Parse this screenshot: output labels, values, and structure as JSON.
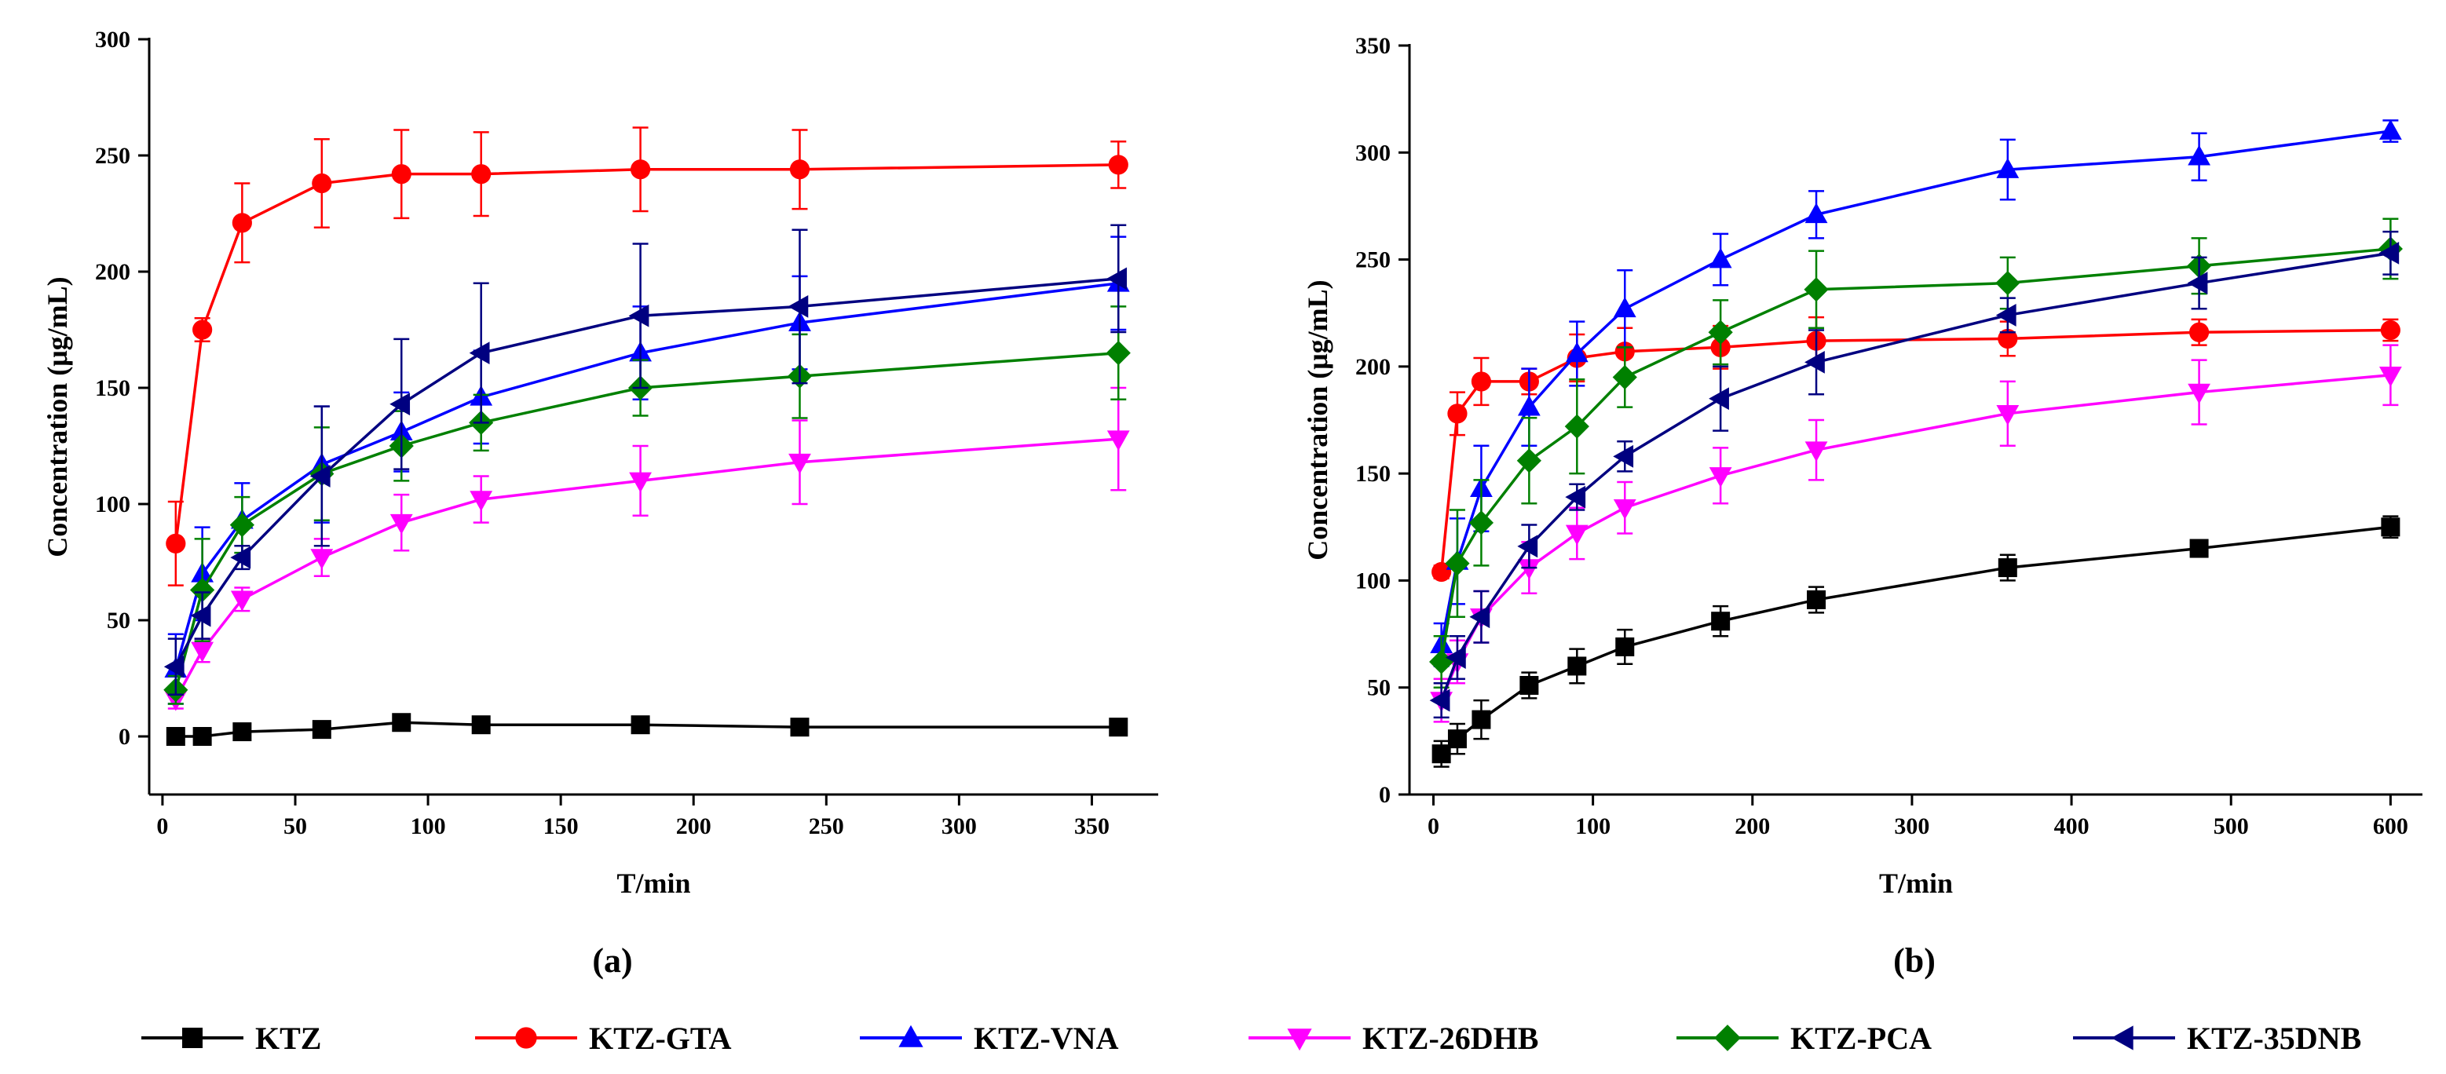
{
  "chart_data": [
    {
      "type": "line",
      "panel_label": "(a)",
      "xlabel": "T/min",
      "ylabel": "Concentration (μg/mL)",
      "xlim": [
        -5,
        375
      ],
      "ylim": [
        -25,
        300
      ],
      "x_ticks": [
        0,
        50,
        100,
        150,
        200,
        250,
        300,
        350
      ],
      "y_ticks": [
        0,
        50,
        100,
        150,
        200,
        250,
        300
      ],
      "x": [
        5,
        15,
        30,
        60,
        90,
        120,
        180,
        240,
        360
      ],
      "series": [
        {
          "name": "KTZ",
          "color": "#000000",
          "marker": "square",
          "values": [
            0,
            0,
            2,
            3,
            6,
            5,
            5,
            4,
            4
          ],
          "errors": [
            1,
            1,
            1,
            1,
            1,
            1,
            1,
            1,
            1
          ]
        },
        {
          "name": "KTZ-GTA",
          "color": "#ff0000",
          "marker": "circle",
          "values": [
            83,
            175,
            221,
            238,
            242,
            242,
            244,
            244,
            246
          ],
          "errors": [
            18,
            5,
            17,
            19,
            19,
            18,
            18,
            17,
            10
          ]
        },
        {
          "name": "KTZ-VNA",
          "color": "#0000ff",
          "marker": "triangle-up",
          "values": [
            29,
            70,
            93,
            117,
            131,
            146,
            165,
            178,
            195
          ],
          "errors": [
            15,
            20,
            16,
            25,
            17,
            20,
            20,
            20,
            20
          ]
        },
        {
          "name": "KTZ-26DHB",
          "color": "#ff00ff",
          "marker": "triangle-down",
          "values": [
            16,
            37,
            59,
            77,
            92,
            102,
            110,
            118,
            128
          ],
          "errors": [
            4,
            5,
            5,
            8,
            12,
            10,
            15,
            18,
            22
          ]
        },
        {
          "name": "KTZ-PCA",
          "color": "#008000",
          "marker": "diamond",
          "values": [
            20,
            63,
            91,
            113,
            125,
            135,
            150,
            155,
            165
          ],
          "errors": [
            6,
            22,
            12,
            20,
            15,
            12,
            12,
            18,
            20
          ]
        },
        {
          "name": "KTZ-35DNB",
          "color": "#000080",
          "marker": "triangle-left",
          "values": [
            30,
            52,
            77,
            112,
            143,
            165,
            181,
            185,
            197
          ],
          "errors": [
            12,
            10,
            5,
            30,
            28,
            30,
            31,
            33,
            23
          ]
        }
      ]
    },
    {
      "type": "line",
      "panel_label": "(b)",
      "xlabel": "T/min",
      "ylabel": "Concentration (μg/mL)",
      "xlim": [
        -15,
        620
      ],
      "ylim": [
        0,
        350
      ],
      "x_ticks": [
        0,
        100,
        200,
        300,
        400,
        500,
        600
      ],
      "y_ticks": [
        0,
        50,
        100,
        150,
        200,
        250,
        300,
        350
      ],
      "x": [
        5,
        15,
        30,
        60,
        90,
        120,
        180,
        240,
        360,
        480,
        600
      ],
      "series": [
        {
          "name": "KTZ",
          "color": "#000000",
          "marker": "square",
          "values": [
            19,
            26,
            35,
            51,
            60,
            69,
            81,
            91,
            106,
            115,
            125
          ],
          "errors": [
            6,
            7,
            9,
            6,
            8,
            8,
            7,
            6,
            6,
            3,
            5
          ]
        },
        {
          "name": "KTZ-GTA",
          "color": "#ff0000",
          "marker": "circle",
          "values": [
            104,
            178,
            193,
            193,
            204,
            207,
            209,
            212,
            213,
            216,
            217
          ],
          "errors": [
            3,
            10,
            11,
            6,
            11,
            11,
            10,
            11,
            8,
            6,
            5
          ]
        },
        {
          "name": "KTZ-VNA",
          "color": "#0000ff",
          "marker": "triangle-up",
          "values": [
            70,
            109,
            143,
            181,
            206,
            227,
            250,
            271,
            292,
            298,
            310
          ],
          "errors": [
            10,
            20,
            20,
            18,
            15,
            18,
            12,
            11,
            14,
            11,
            5
          ]
        },
        {
          "name": "KTZ-26DHB",
          "color": "#ff00ff",
          "marker": "triangle-down",
          "values": [
            44,
            62,
            83,
            106,
            122,
            134,
            149,
            161,
            178,
            188,
            196
          ],
          "errors": [
            10,
            10,
            12,
            12,
            12,
            12,
            13,
            14,
            15,
            15,
            14
          ]
        },
        {
          "name": "KTZ-PCA",
          "color": "#008000",
          "marker": "diamond",
          "values": [
            62,
            108,
            127,
            156,
            172,
            195,
            216,
            236,
            239,
            247,
            255
          ],
          "errors": [
            12,
            25,
            20,
            20,
            22,
            14,
            15,
            18,
            12,
            13,
            14
          ]
        },
        {
          "name": "KTZ-35DNB",
          "color": "#000080",
          "marker": "triangle-left",
          "values": [
            44,
            64,
            83,
            116,
            139,
            158,
            185,
            202,
            224,
            239,
            253
          ],
          "errors": [
            8,
            10,
            12,
            10,
            6,
            7,
            15,
            15,
            8,
            12,
            10
          ]
        }
      ]
    }
  ],
  "legend": [
    {
      "label": "KTZ",
      "color": "#000000",
      "marker": "square"
    },
    {
      "label": "KTZ-GTA",
      "color": "#ff0000",
      "marker": "circle"
    },
    {
      "label": "KTZ-VNA",
      "color": "#0000ff",
      "marker": "triangle-up"
    },
    {
      "label": "KTZ-26DHB",
      "color": "#ff00ff",
      "marker": "triangle-down"
    },
    {
      "label": "KTZ-PCA",
      "color": "#008000",
      "marker": "diamond"
    },
    {
      "label": "KTZ-35DNB",
      "color": "#000080",
      "marker": "triangle-left"
    }
  ]
}
